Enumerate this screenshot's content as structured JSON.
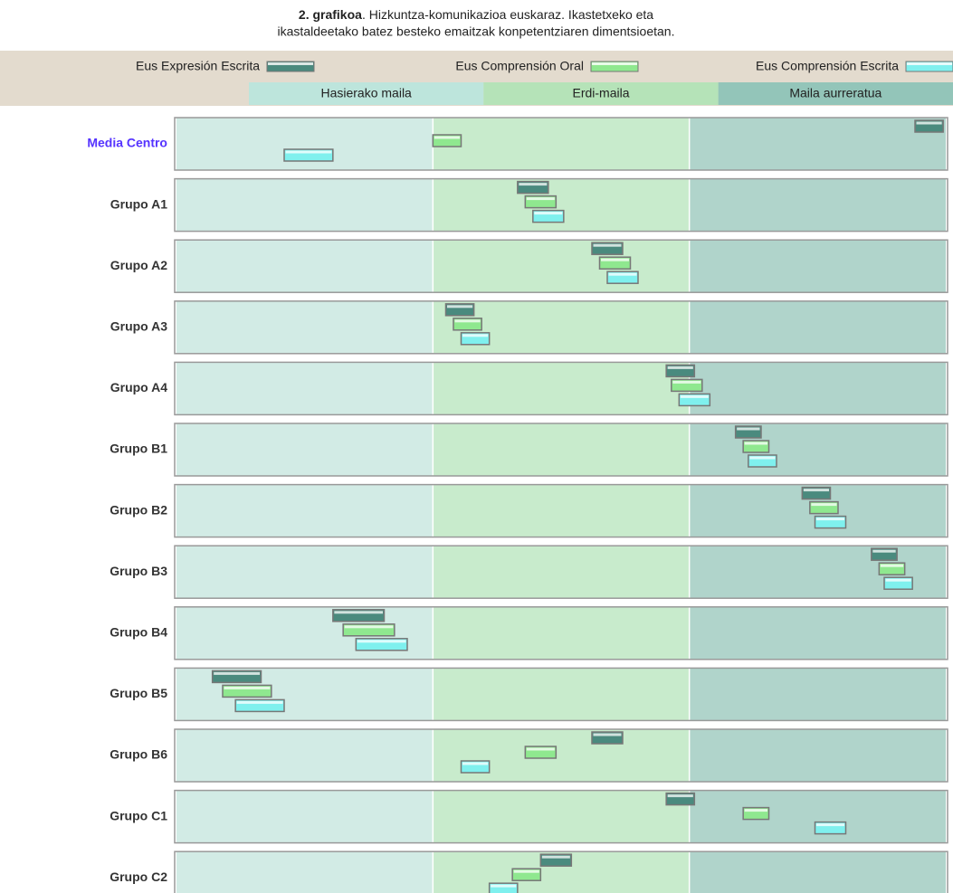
{
  "chart_data": {
    "type": "range",
    "title": {
      "bold": "2. grafikoa",
      "line1": ". Hizkuntza-komunikazioa euskaraz. Ikastetxeko eta",
      "line2": "ikastaldeetako batez besteko emaitzak konpetentziaren dimentsioetan."
    },
    "bands": [
      {
        "name": "Hasierako maila",
        "color": "#bde5dc",
        "row_color": "#d2ebe5"
      },
      {
        "name": "Erdi-maila",
        "color": "#b5e3b8",
        "row_color": "#c8ebcc"
      },
      {
        "name": "Maila aurreratua",
        "color": "#93c5b9",
        "row_color": "#b0d4cb"
      }
    ],
    "xlim": [
      0,
      3
    ],
    "categories": [
      "Media Centro",
      "Grupo A1",
      "Grupo A2",
      "Grupo A3",
      "Grupo A4",
      "Grupo B1",
      "Grupo B2",
      "Grupo B3",
      "Grupo B4",
      "Grupo B5",
      "Grupo B6",
      "Grupo C1",
      "Grupo C2"
    ],
    "highlight_color": "#5533ff",
    "series": [
      {
        "name": "Eus Expresión Escrita",
        "color": "#4a8a7e",
        "low": [
          2.88,
          1.33,
          1.62,
          1.05,
          1.91,
          2.18,
          2.44,
          2.71,
          0.61,
          0.14,
          1.62,
          1.91,
          1.42
        ],
        "high": [
          2.99,
          1.45,
          1.74,
          1.16,
          2.02,
          2.28,
          2.55,
          2.81,
          0.81,
          0.33,
          1.74,
          2.02,
          1.54
        ]
      },
      {
        "name": "Eus Comprensión Oral",
        "color": "#8fe88f",
        "low": [
          1.0,
          1.36,
          1.65,
          1.08,
          1.93,
          2.21,
          2.47,
          2.74,
          0.65,
          0.18,
          1.36,
          2.21,
          1.31
        ],
        "high": [
          1.11,
          1.48,
          1.77,
          1.19,
          2.05,
          2.31,
          2.58,
          2.84,
          0.85,
          0.37,
          1.48,
          2.31,
          1.42
        ]
      },
      {
        "name": "Eus Comprensión Escrita",
        "color": "#7ff0ee",
        "low": [
          0.42,
          1.39,
          1.68,
          1.11,
          1.96,
          2.23,
          2.49,
          2.76,
          0.7,
          0.23,
          1.11,
          2.49,
          1.22
        ],
        "high": [
          0.61,
          1.51,
          1.8,
          1.22,
          2.08,
          2.34,
          2.61,
          2.87,
          0.9,
          0.42,
          1.22,
          2.61,
          1.33
        ]
      }
    ]
  }
}
